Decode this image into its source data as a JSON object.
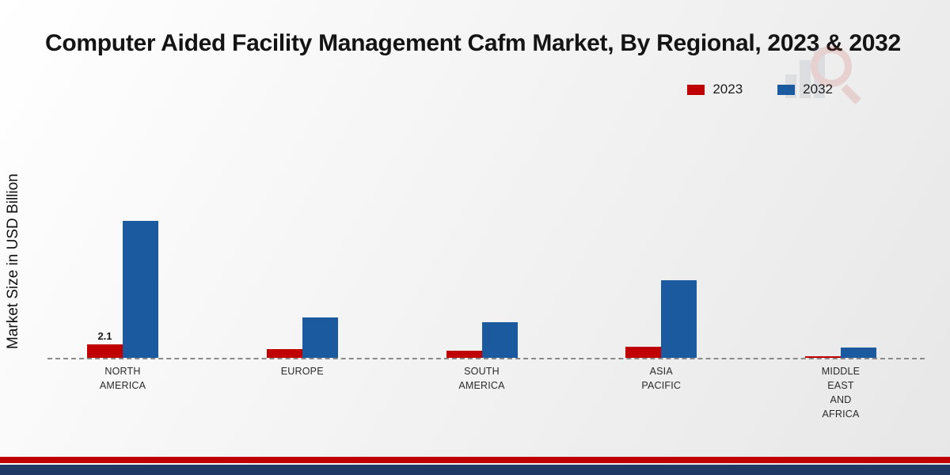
{
  "title": "Computer Aided Facility Management Cafm Market, By Regional, 2023 & 2032",
  "y_axis_label": "Market Size in USD Billion",
  "legend": [
    {
      "label": "2023",
      "color": "#c00000"
    },
    {
      "label": "2032",
      "color": "#1b5a9e"
    }
  ],
  "chart_data": {
    "type": "bar",
    "title": "Computer Aided Facility Management Cafm Market, By Regional, 2023 & 2032",
    "ylabel": "Market Size in USD Billion",
    "xlabel": "",
    "categories": [
      "North America",
      "Europe",
      "South America",
      "Asia Pacific",
      "Middle East and Africa"
    ],
    "category_label_lines": [
      [
        "NORTH",
        "AMERICA"
      ],
      [
        "EUROPE"
      ],
      [
        "SOUTH",
        "AMERICA"
      ],
      [
        "ASIA",
        "PACIFIC"
      ],
      [
        "MIDDLE",
        "EAST",
        "AND",
        "AFRICA"
      ]
    ],
    "series": [
      {
        "name": "2023",
        "color": "#c00000",
        "values": [
          2.1,
          1.3,
          1.1,
          1.7,
          0.25
        ]
      },
      {
        "name": "2032",
        "color": "#1b5a9e",
        "values": [
          21.3,
          6.3,
          5.5,
          12.1,
          1.6
        ]
      }
    ],
    "data_label": {
      "series_index": 0,
      "category_index": 0,
      "text": "2.1"
    },
    "ylim": [
      0,
      23
    ],
    "grid": false,
    "baseline_style": "dashed",
    "legend_position": "top-right"
  },
  "footer": {
    "red_stripe_color": "#c00000",
    "navy_stripe_color": "#1f3864"
  },
  "watermark": "bar-chart-magnifier-logo"
}
